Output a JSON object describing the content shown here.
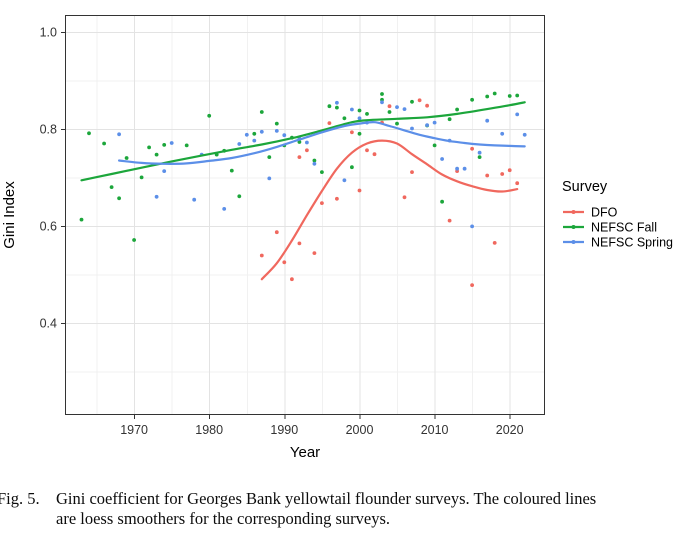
{
  "caption": {
    "label": "Fig. 5.",
    "lines": [
      "Gini coefficient for Georges Bank yellowtail flounder surveys. The coloured lines",
      "are loess smoothers for the corresponding surveys."
    ]
  },
  "chart_data": {
    "type": "scatter",
    "title": "",
    "xlabel": "Year",
    "ylabel": "Gini Index",
    "xlim": [
      1960.8,
      2024.7
    ],
    "ylim": [
      0.21,
      1.035
    ],
    "x_ticks": [
      1970,
      1980,
      1990,
      2000,
      2010,
      2020
    ],
    "x_minor_ticks": [
      1965,
      1975,
      1985,
      1995,
      2005,
      2015
    ],
    "y_ticks": [
      0.4,
      0.6,
      0.8,
      1.0
    ],
    "y_tick_labels": [
      "0.4",
      "0.6",
      "0.8",
      "1.0"
    ],
    "y_minor_ticks": [
      0.3,
      0.5,
      0.7,
      0.9
    ],
    "grid": true,
    "panel_border_color": "#333333",
    "grid_major_color": "#e3e3e3",
    "grid_minor_color": "#f1f1f1",
    "tick_label_color": "#333333",
    "axis_title_color": "#000000",
    "legend": {
      "title": "Survey",
      "position": "right"
    },
    "series": [
      {
        "name": "DFO",
        "color": "#F0685E",
        "points": [
          [
            1987,
            0.539
          ],
          [
            1989,
            0.587
          ],
          [
            1990,
            0.525
          ],
          [
            1991,
            0.49
          ],
          [
            1992,
            0.742
          ],
          [
            1992,
            0.564
          ],
          [
            1993,
            0.756
          ],
          [
            1994,
            0.544
          ],
          [
            1995,
            0.647
          ],
          [
            1996,
            0.812
          ],
          [
            1997,
            0.656
          ],
          [
            1999,
            0.793
          ],
          [
            2000,
            0.673
          ],
          [
            2001,
            0.756
          ],
          [
            2002,
            0.748
          ],
          [
            2003,
            0.813
          ],
          [
            2004,
            0.847
          ],
          [
            2006,
            0.659
          ],
          [
            2007,
            0.711
          ],
          [
            2008,
            0.859
          ],
          [
            2009,
            0.848
          ],
          [
            2012,
            0.611
          ],
          [
            2013,
            0.713
          ],
          [
            2015,
            0.478
          ],
          [
            2015,
            0.759
          ],
          [
            2017,
            0.704
          ],
          [
            2018,
            0.565
          ],
          [
            2019,
            0.707
          ],
          [
            2020,
            0.715
          ],
          [
            2021,
            0.688
          ]
        ],
        "loess": [
          [
            1987,
            0.49
          ],
          [
            1989,
            0.523
          ],
          [
            1991,
            0.57
          ],
          [
            1993,
            0.622
          ],
          [
            1995,
            0.672
          ],
          [
            1997,
            0.718
          ],
          [
            1999,
            0.751
          ],
          [
            2001,
            0.77
          ],
          [
            2003,
            0.776
          ],
          [
            2005,
            0.77
          ],
          [
            2007,
            0.748
          ],
          [
            2009,
            0.727
          ],
          [
            2011,
            0.706
          ],
          [
            2013,
            0.692
          ],
          [
            2015,
            0.682
          ],
          [
            2017,
            0.674
          ],
          [
            2019,
            0.671
          ],
          [
            2021,
            0.676
          ]
        ]
      },
      {
        "name": "NEFSC Fall",
        "color": "#1CA63B",
        "points": [
          [
            1963,
            0.613
          ],
          [
            1964,
            0.791
          ],
          [
            1966,
            0.77
          ],
          [
            1967,
            0.68
          ],
          [
            1968,
            0.657
          ],
          [
            1969,
            0.74
          ],
          [
            1970,
            0.571
          ],
          [
            1971,
            0.7
          ],
          [
            1972,
            0.762
          ],
          [
            1973,
            0.747
          ],
          [
            1974,
            0.767
          ],
          [
            1977,
            0.766
          ],
          [
            1980,
            0.827
          ],
          [
            1981,
            0.747
          ],
          [
            1982,
            0.755
          ],
          [
            1983,
            0.714
          ],
          [
            1984,
            0.661
          ],
          [
            1986,
            0.79
          ],
          [
            1987,
            0.835
          ],
          [
            1988,
            0.742
          ],
          [
            1989,
            0.811
          ],
          [
            1990,
            0.766
          ],
          [
            1991,
            0.782
          ],
          [
            1992,
            0.773
          ],
          [
            1994,
            0.735
          ],
          [
            1995,
            0.711
          ],
          [
            1996,
            0.847
          ],
          [
            1997,
            0.844
          ],
          [
            1998,
            0.822
          ],
          [
            1999,
            0.721
          ],
          [
            2000,
            0.79
          ],
          [
            2000,
            0.838
          ],
          [
            2001,
            0.831
          ],
          [
            2003,
            0.86
          ],
          [
            2003,
            0.872
          ],
          [
            2004,
            0.835
          ],
          [
            2005,
            0.811
          ],
          [
            2007,
            0.856
          ],
          [
            2009,
            0.807
          ],
          [
            2010,
            0.766
          ],
          [
            2011,
            0.65
          ],
          [
            2012,
            0.82
          ],
          [
            2013,
            0.84
          ],
          [
            2015,
            0.86
          ],
          [
            2016,
            0.742
          ],
          [
            2017,
            0.867
          ],
          [
            2018,
            0.873
          ],
          [
            2020,
            0.868
          ],
          [
            2021,
            0.869
          ]
        ],
        "loess": [
          [
            1963,
            0.694
          ],
          [
            1967,
            0.707
          ],
          [
            1971,
            0.72
          ],
          [
            1975,
            0.733
          ],
          [
            1979,
            0.745
          ],
          [
            1983,
            0.757
          ],
          [
            1987,
            0.768
          ],
          [
            1991,
            0.781
          ],
          [
            1995,
            0.797
          ],
          [
            1999,
            0.814
          ],
          [
            2001,
            0.818
          ],
          [
            2005,
            0.821
          ],
          [
            2009,
            0.824
          ],
          [
            2013,
            0.831
          ],
          [
            2017,
            0.841
          ],
          [
            2020,
            0.849
          ],
          [
            2022,
            0.855
          ]
        ]
      },
      {
        "name": "NEFSC Spring",
        "color": "#5C8FE8",
        "points": [
          [
            1968,
            0.789
          ],
          [
            1973,
            0.66
          ],
          [
            1974,
            0.713
          ],
          [
            1975,
            0.771
          ],
          [
            1978,
            0.654
          ],
          [
            1979,
            0.747
          ],
          [
            1982,
            0.635
          ],
          [
            1984,
            0.769
          ],
          [
            1985,
            0.788
          ],
          [
            1986,
            0.776
          ],
          [
            1987,
            0.794
          ],
          [
            1988,
            0.698
          ],
          [
            1989,
            0.796
          ],
          [
            1990,
            0.787
          ],
          [
            1992,
            0.78
          ],
          [
            1993,
            0.772
          ],
          [
            1994,
            0.728
          ],
          [
            1997,
            0.854
          ],
          [
            1998,
            0.694
          ],
          [
            1999,
            0.84
          ],
          [
            2000,
            0.822
          ],
          [
            2001,
            0.813
          ],
          [
            2003,
            0.855
          ],
          [
            2005,
            0.845
          ],
          [
            2006,
            0.841
          ],
          [
            2007,
            0.801
          ],
          [
            2009,
            0.808
          ],
          [
            2010,
            0.813
          ],
          [
            2011,
            0.738
          ],
          [
            2012,
            0.776
          ],
          [
            2013,
            0.718
          ],
          [
            2014,
            0.718
          ],
          [
            2015,
            0.599
          ],
          [
            2016,
            0.751
          ],
          [
            2017,
            0.817
          ],
          [
            2019,
            0.79
          ],
          [
            2021,
            0.83
          ],
          [
            2022,
            0.788
          ]
        ],
        "loess": [
          [
            1968,
            0.735
          ],
          [
            1971,
            0.73
          ],
          [
            1974,
            0.728
          ],
          [
            1977,
            0.729
          ],
          [
            1980,
            0.734
          ],
          [
            1983,
            0.74
          ],
          [
            1986,
            0.75
          ],
          [
            1989,
            0.763
          ],
          [
            1992,
            0.778
          ],
          [
            1995,
            0.793
          ],
          [
            1998,
            0.806
          ],
          [
            2000,
            0.811
          ],
          [
            2002,
            0.814
          ],
          [
            2004,
            0.806
          ],
          [
            2006,
            0.797
          ],
          [
            2008,
            0.788
          ],
          [
            2010,
            0.781
          ],
          [
            2012,
            0.775
          ],
          [
            2014,
            0.771
          ],
          [
            2016,
            0.768
          ],
          [
            2018,
            0.766
          ],
          [
            2020,
            0.765
          ],
          [
            2022,
            0.764
          ]
        ]
      }
    ]
  }
}
